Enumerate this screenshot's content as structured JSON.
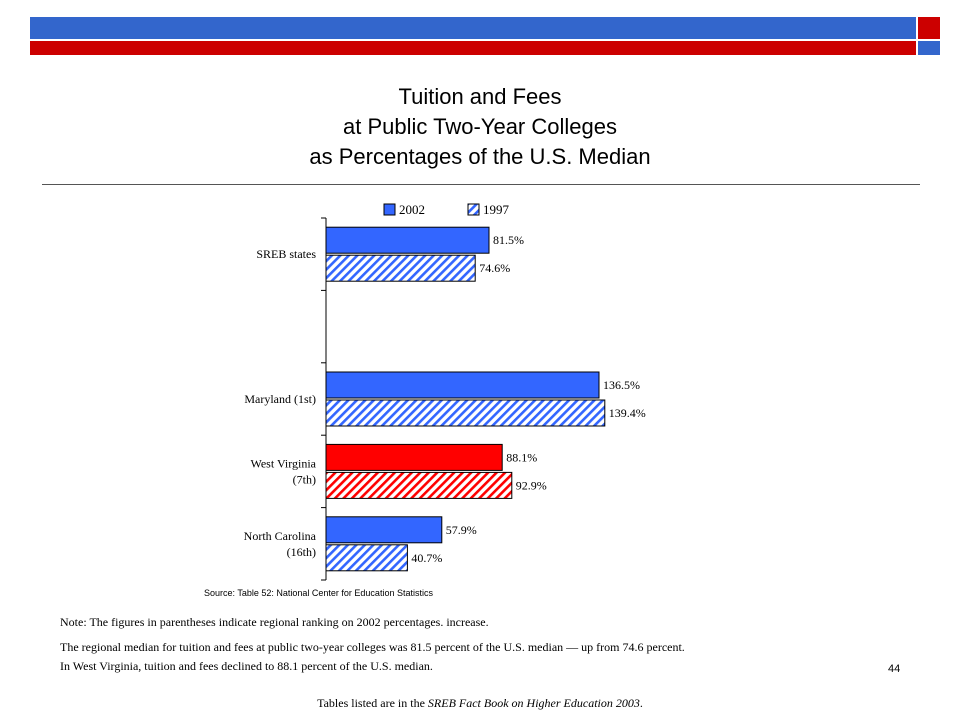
{
  "header": {
    "title_lines": [
      "Tuition and Fees",
      "at Public Two-Year Colleges",
      "as Percentages of the U.S. Median"
    ]
  },
  "chart_data": {
    "type": "bar",
    "orientation": "horizontal",
    "categories": [
      "SREB states",
      "",
      "Maryland (1st)",
      "West Virginia (7th)",
      "North Carolina (16th)"
    ],
    "category_lines": [
      [
        "SREB states"
      ],
      [],
      [
        "Maryland (1st)"
      ],
      [
        "West Virginia",
        "(7th)"
      ],
      [
        "North Carolina",
        "(16th)"
      ]
    ],
    "series": [
      {
        "name": "2002",
        "values": [
          81.5,
          null,
          136.5,
          88.1,
          57.9
        ],
        "labels": [
          "81.5%",
          "",
          "136.5%",
          "88.1%",
          "57.9%"
        ],
        "pattern": "solid"
      },
      {
        "name": "1997",
        "values": [
          74.6,
          null,
          139.4,
          92.9,
          40.7
        ],
        "labels": [
          "74.6%",
          "",
          "139.4%",
          "92.9%",
          "40.7%"
        ],
        "pattern": "hatched"
      }
    ],
    "highlight_category": "West Virginia (7th)",
    "colors": {
      "default": "#3366ff",
      "highlight": "#ff0000"
    },
    "legend": {
      "placement": "top",
      "entries": [
        "2002",
        "1997"
      ]
    },
    "xlim": [
      0,
      150
    ],
    "source": "Source: Table 52: National Center for Education Statistics"
  },
  "notes": {
    "note1": "Note: The figures in parentheses indicate regional ranking on 2002 percentages. increase.",
    "note2": "The regional median for tuition and fees at public two-year colleges was 81.5 percent of the U.S. median — up from 74.6 percent.",
    "note3": "In West Virginia, tuition and fees declined to 88.1 percent of the U.S. median."
  },
  "page_number": "44",
  "footer": {
    "prefix": "Tables listed are in the ",
    "italic": "SREB Fact Book on Higher Education 2003",
    "suffix": "."
  }
}
